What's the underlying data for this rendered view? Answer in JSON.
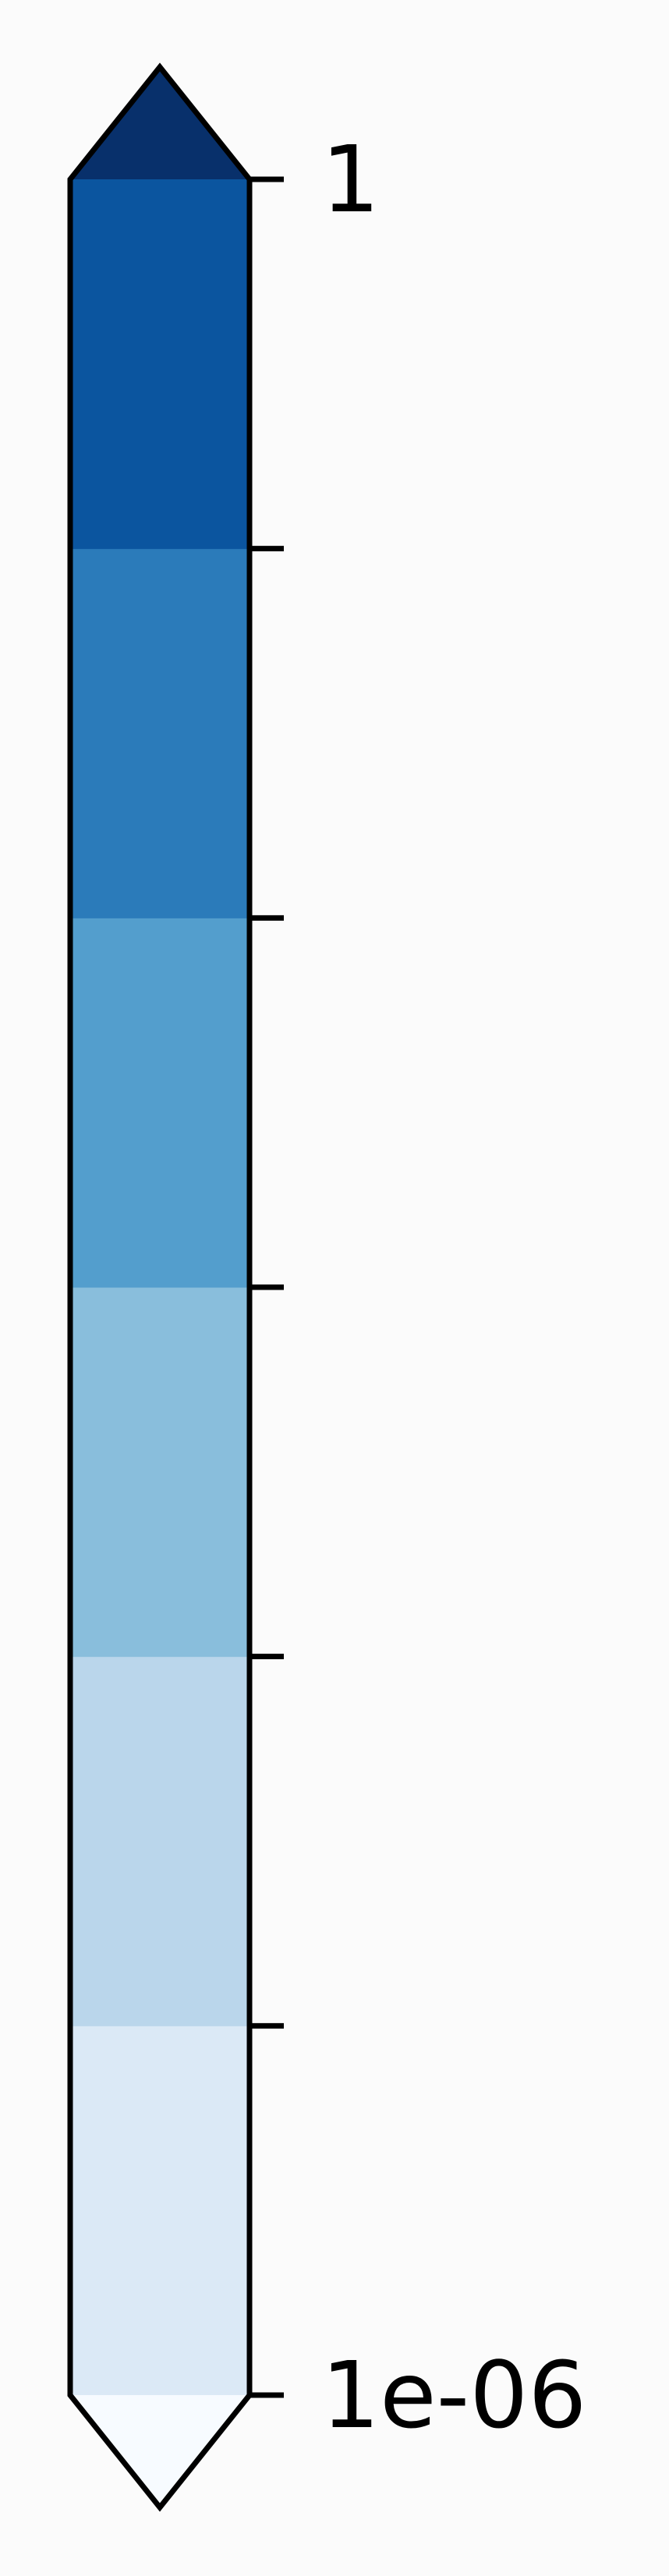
{
  "chart_data": {
    "type": "colorbar",
    "orientation": "vertical",
    "scale": "log",
    "range": [
      1e-06,
      1
    ],
    "extend": "both",
    "tick_values": [
      1e-06,
      1e-05,
      0.0001,
      0.001,
      0.01,
      0.1,
      1
    ],
    "tick_labels": [
      "1e-06",
      "",
      "",
      "",
      "",
      "",
      "1"
    ],
    "bins": [
      {
        "from": 1e-06,
        "to": 1e-05,
        "color": "#dbe9f6"
      },
      {
        "from": 1e-05,
        "to": 0.0001,
        "color": "#bad6eb"
      },
      {
        "from": 0.0001,
        "to": 0.001,
        "color": "#89bedc"
      },
      {
        "from": 0.001,
        "to": 0.01,
        "color": "#539ecd"
      },
      {
        "from": 0.01,
        "to": 0.1,
        "color": "#2b7bba"
      },
      {
        "from": 0.1,
        "to": 1,
        "color": "#0b559f"
      }
    ],
    "under_color": "#f7fbff",
    "over_color": "#08306b",
    "outline_color": "#000000"
  }
}
